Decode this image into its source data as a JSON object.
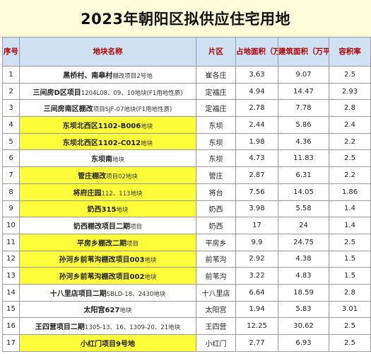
{
  "title": "2023年朝阳区拟供应住宅用地",
  "headers": {
    "no": "序号",
    "name": "地块名称",
    "area": "片区",
    "land": "占地面积（万平）",
    "build": "建筑面积（万平）",
    "far": "容积率"
  },
  "rows": [
    {
      "no": "1",
      "name_main": "黑桥村、南皋村",
      "name_sub": "棚改项目2号地",
      "area": "崔各庄",
      "land": "3.63",
      "build": "9.07",
      "far": "2.5",
      "highlight": false
    },
    {
      "no": "2",
      "name_main": "三间房D区项目",
      "name_sub": "1204L08、09、10地块(F1用地性质)",
      "area": "定福庄",
      "land": "4.94",
      "build": "14.47",
      "far": "2.93",
      "highlight": false
    },
    {
      "no": "3",
      "name_main": "三间房南区棚改",
      "name_sub": "项目SJF-07地块(F1用地性质)",
      "area": "定福庄",
      "land": "2.78",
      "build": "7.78",
      "far": "2.8",
      "highlight": false
    },
    {
      "no": "4",
      "name_main": "东坝北西区1102-B006",
      "name_sub": "地块",
      "area": "东坝",
      "land": "2.44",
      "build": "5.86",
      "far": "2.4",
      "highlight": true
    },
    {
      "no": "5",
      "name_main": "东坝北西区1102-C012",
      "name_sub": "地块",
      "area": "东坝",
      "land": "1.98",
      "build": "4.36",
      "far": "2.2",
      "highlight": true
    },
    {
      "no": "6",
      "name_main": "东坝南",
      "name_sub": "地块",
      "area": "东坝",
      "land": "4.73",
      "build": "11.83",
      "far": "2.5",
      "highlight": false
    },
    {
      "no": "7",
      "name_main": "管庄棚改",
      "name_sub": "项目02地块",
      "area": "管庄",
      "land": "2.87",
      "build": "6.31",
      "far": "2.2",
      "highlight": true
    },
    {
      "no": "8",
      "name_main": "将府庄园",
      "name_sub": "112、113地块",
      "area": "将台",
      "land": "7.56",
      "build": "14.05",
      "far": "1.86",
      "highlight": true
    },
    {
      "no": "9",
      "name_main": "奶西315",
      "name_sub": "地块",
      "area": "奶西",
      "land": "3.98",
      "build": "5.58",
      "far": "1.4",
      "highlight": true
    },
    {
      "no": "10",
      "name_main": "奶西棚改项目二期",
      "name_sub": "项目",
      "area": "奶西",
      "land": "17",
      "build": "24",
      "far": "1.4",
      "highlight": false
    },
    {
      "no": "11",
      "name_main": "平房乡棚改二期",
      "name_sub": "项目",
      "area": "平房乡",
      "land": "9.9",
      "build": "24.75",
      "far": "2.5",
      "highlight": true
    },
    {
      "no": "12",
      "name_main": "孙河乡前苇沟棚改项目003",
      "name_sub": "地块",
      "area": "前苇沟",
      "land": "2.92",
      "build": "4.38",
      "far": "1.5",
      "highlight": true
    },
    {
      "no": "13",
      "name_main": "孙河乡前苇沟棚改项目002",
      "name_sub": "地块",
      "area": "前苇沟",
      "land": "3.22",
      "build": "4.83",
      "far": "1.5",
      "highlight": true
    },
    {
      "no": "14",
      "name_main": "十八里店项目二期",
      "name_sub": "SBLD-18、2430地块",
      "area": "十八里店",
      "land": "6.64",
      "build": "18.59",
      "far": "2.8",
      "highlight": false
    },
    {
      "no": "15",
      "name_main": "太阳宫627",
      "name_sub": "地块",
      "area": "太阳宫",
      "land": "1.94",
      "build": "5.83",
      "far": "3.01",
      "highlight": false
    },
    {
      "no": "16",
      "name_main": "王四营项目二期",
      "name_sub": "1305-13、16、1309-20、21地块",
      "area": "王四营",
      "land": "12.25",
      "build": "30.62",
      "far": "2.5",
      "highlight": false
    },
    {
      "no": "17",
      "name_main": "小红门项目9号地",
      "name_sub": "",
      "area": "小红门",
      "land": "2.77",
      "build": "6.93",
      "far": "2.5",
      "highlight": true
    }
  ]
}
